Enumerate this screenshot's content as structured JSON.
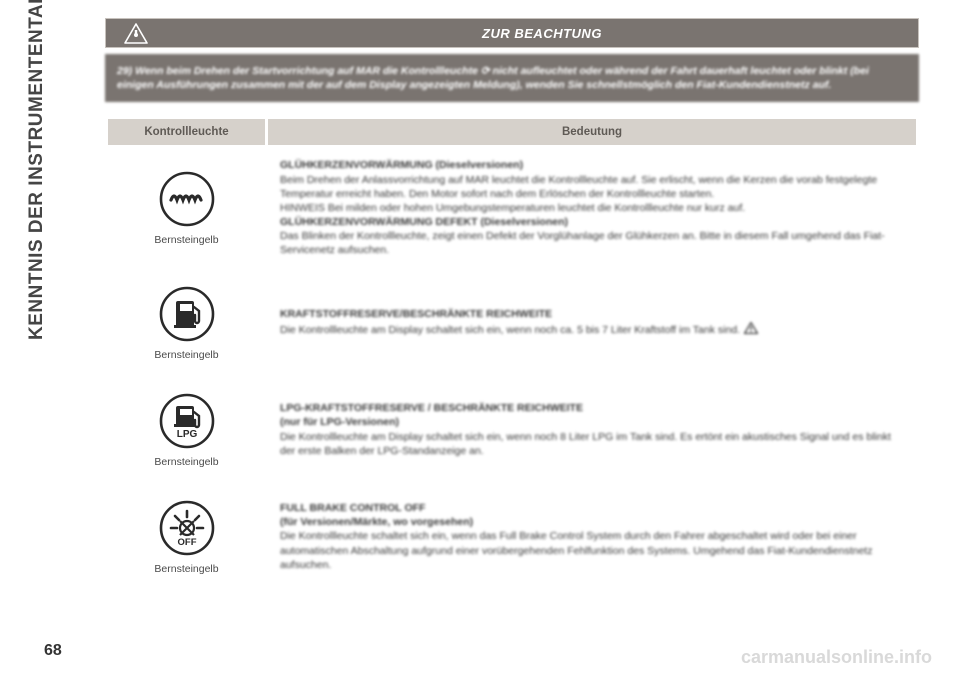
{
  "sidebar": {
    "label": "KENNTNIS DER INSTRUMENTENTAFEL"
  },
  "page_number": "68",
  "footer_site": "carmanualsonline.info",
  "notice": {
    "title": "ZUR BEACHTUNG",
    "body": "29) Wenn beim Drehen der Startvorrichtung auf MAR die Kontrollleuchte ⟳ nicht aufleuchtet oder während der Fahrt dauerhaft leuchtet oder blinkt (bei einigen Ausführungen zusammen mit der auf dem Display angezeigten Meldung), wenden Sie schnellstmöglich den Fiat-Kundendienstnetz auf.",
    "icon_stroke": "#ffffff"
  },
  "table": {
    "headers": {
      "col1": "Kontrollleuchte",
      "col2": "Bedeutung"
    },
    "header_bg": "#d6d1cb",
    "border_color": "#c7c2bd",
    "rows": [
      {
        "icon": {
          "type": "coil",
          "label": "Bernsteingelb",
          "stroke": "#2a2a2a"
        },
        "meaning": {
          "title": "GLÜHKERZENVORWÄRMUNG (Dieselversionen)",
          "lines": [
            "Beim Drehen der Anlassvorrichtung auf MAR leuchtet die Kontrollleuchte auf. Sie erlischt, wenn die Kerzen die vorab festgelegte Temperatur erreicht haben. Den Motor sofort nach dem Erlöschen der Kontrollleuchte starten.",
            "HINWEIS Bei milden oder hohen Umgebungstemperaturen leuchtet die Kontrollleuchte nur kurz auf.",
            "GLÜHKERZENVORWÄRMUNG DEFEKT (Dieselversionen)",
            "Das Blinken der Kontrollleuchte, zeigt einen Defekt der Vorglühanlage der Glühkerzen an. Bitte in diesem Fall umgehend das Fiat-Servicenetz aufsuchen."
          ],
          "bold_idx": [
            2
          ]
        }
      },
      {
        "icon": {
          "type": "fuel",
          "label": "Bernsteingelb",
          "stroke": "#2a2a2a"
        },
        "meaning": {
          "title": "KRAFTSTOFFRESERVE/BESCHRÄNKTE REICHWEITE",
          "lines": [
            "Die Kontrollleuchte am Display schaltet sich ein, wenn noch ca. 5 bis 7 Liter Kraftstoff im Tank sind."
          ],
          "trailing_icon": true
        }
      },
      {
        "icon": {
          "type": "lpg",
          "label": "Bernsteingelb",
          "stroke": "#2a2a2a",
          "lpg_text": "LPG"
        },
        "meaning": {
          "title": "LPG-KRAFTSTOFFRESERVE / BESCHRÄNKTE REICHWEITE",
          "subtitle": "(nur für LPG-Versionen)",
          "lines": [
            "Die Kontrollleuchte am Display schaltet sich ein, wenn noch 8 Liter LPG im Tank sind. Es ertönt ein akustisches Signal und es blinkt der erste Balken der LPG-Standanzeige an."
          ]
        }
      },
      {
        "icon": {
          "type": "brake_off",
          "label": "Bernsteingelb",
          "stroke": "#2a2a2a",
          "off_text": "OFF"
        },
        "meaning": {
          "title": "FULL BRAKE CONTROL OFF",
          "subtitle": "(für Versionen/Märkte, wo vorgesehen)",
          "lines": [
            "Die Kontrollleuchte schaltet sich ein, wenn das Full Brake Control System durch den Fahrer abgeschaltet wird oder bei einer automatischen Abschaltung aufgrund einer vorübergehenden Fehlfunktion des Systems. Umgehend das Fiat-Kundendienstnetz aufsuchen."
          ]
        }
      }
    ]
  },
  "colors": {
    "notice_bg": "#7a7470",
    "text": "#3a3a3a",
    "sidebar_text": "#454545",
    "footer": "#d9d9d9"
  }
}
